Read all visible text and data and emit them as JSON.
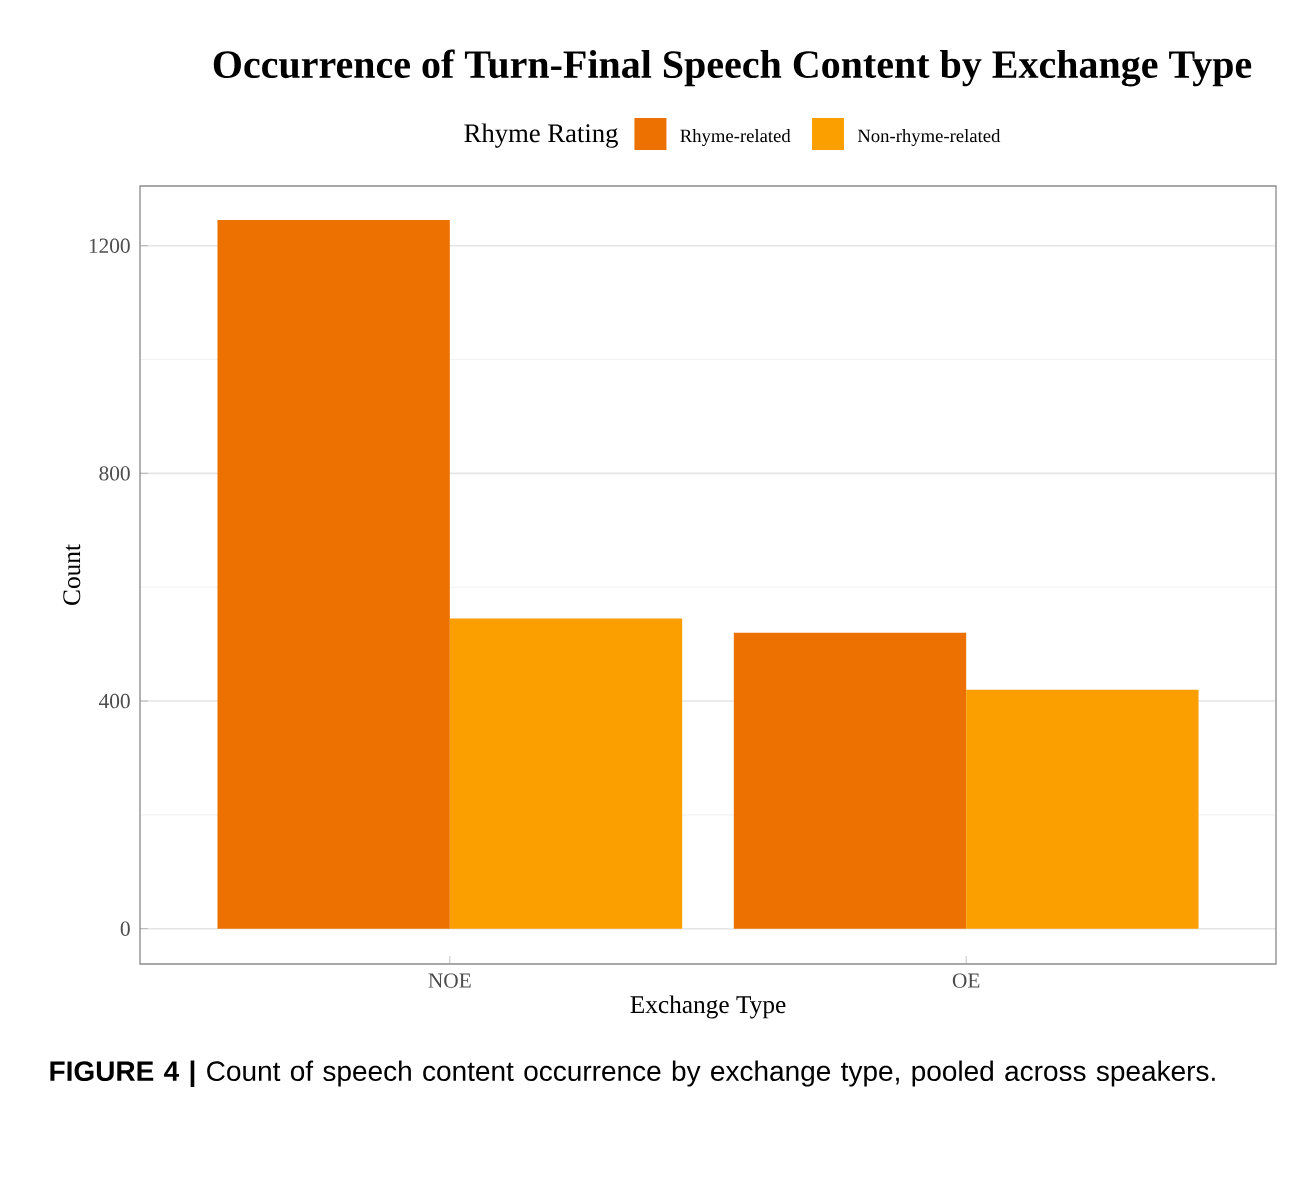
{
  "chart_data": {
    "type": "bar",
    "title": "Occurrence of Turn-Final Speech Content by Exchange Type",
    "xlabel": "Exchange Type",
    "ylabel": "Count",
    "legend_title": "Rhyme Rating",
    "legend": "top",
    "categories": [
      "NOE",
      "OE"
    ],
    "series": [
      {
        "name": "Rhyme-related",
        "color": "#ec7100",
        "values": [
          1245,
          520
        ]
      },
      {
        "name": "Non-rhyme-related",
        "color": "#fb9e00",
        "values": [
          545,
          420
        ]
      }
    ],
    "ylim": [
      -62,
      1305
    ],
    "yticks": [
      0,
      400,
      800,
      1200
    ],
    "grid": "y",
    "annotations": [
      "**FIGURE 4 |** Count of speech content occurrence by exchange type, pooled across speakers."
    ]
  }
}
